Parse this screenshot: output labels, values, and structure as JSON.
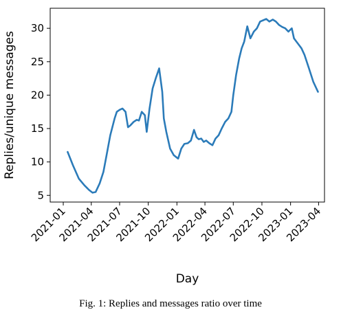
{
  "chart_data": {
    "type": "line",
    "title": "",
    "xlabel": "Day",
    "ylabel": "Replies/unique messages",
    "x_ticks": [
      "2021-01",
      "2021-04",
      "2021-07",
      "2021-10",
      "2022-01",
      "2022-04",
      "2022-07",
      "2022-10",
      "2023-01",
      "2023-04"
    ],
    "y_ticks": [
      5,
      10,
      15,
      20,
      25,
      30
    ],
    "xlim": [
      "2020-11-20",
      "2023-04-20"
    ],
    "ylim": [
      4,
      33
    ],
    "grid": false,
    "legend": "none",
    "color": "#2b7bb9",
    "series": [
      {
        "x": [
          "2021-01-15",
          "2021-02-01",
          "2021-02-20",
          "2021-03-10",
          "2021-03-25",
          "2021-04-05",
          "2021-04-15",
          "2021-04-28",
          "2021-05-10",
          "2021-05-20",
          "2021-06-01",
          "2021-06-15",
          "2021-06-22",
          "2021-07-01",
          "2021-07-10",
          "2021-07-20",
          "2021-07-28",
          "2021-08-05",
          "2021-08-15",
          "2021-08-25",
          "2021-09-01",
          "2021-09-10",
          "2021-09-20",
          "2021-09-26",
          "2021-10-05",
          "2021-10-15",
          "2021-10-25",
          "2021-11-05",
          "2021-11-15",
          "2021-11-20",
          "2021-11-28",
          "2021-12-10",
          "2021-12-22",
          "2022-01-05",
          "2022-01-15",
          "2022-01-25",
          "2022-02-05",
          "2022-02-15",
          "2022-02-25",
          "2022-03-05",
          "2022-03-12",
          "2022-03-20",
          "2022-03-28",
          "2022-04-05",
          "2022-04-15",
          "2022-04-25",
          "2022-05-05",
          "2022-05-15",
          "2022-05-25",
          "2022-06-05",
          "2022-06-15",
          "2022-06-25",
          "2022-07-01",
          "2022-07-10",
          "2022-07-20",
          "2022-07-28",
          "2022-08-05",
          "2022-08-15",
          "2022-08-25",
          "2022-09-05",
          "2022-09-15",
          "2022-09-25",
          "2022-10-05",
          "2022-10-15",
          "2022-10-25",
          "2022-11-05",
          "2022-11-15",
          "2022-11-25",
          "2022-12-05",
          "2022-12-15",
          "2022-12-25",
          "2023-01-05",
          "2023-01-12",
          "2023-01-20",
          "2023-01-28",
          "2023-02-05",
          "2023-02-15",
          "2023-03-01",
          "2023-03-15",
          "2023-03-30"
        ],
        "y": [
          11.5,
          9.5,
          7.5,
          6.5,
          5.8,
          5.4,
          5.5,
          6.8,
          8.5,
          11,
          14,
          16.5,
          17.5,
          17.8,
          18,
          17.5,
          15.2,
          15.5,
          16,
          16.3,
          16.2,
          17.5,
          17,
          14.5,
          18,
          21,
          22.5,
          24,
          20.5,
          16.5,
          14.5,
          12,
          11,
          10.5,
          12,
          12.7,
          12.8,
          13.2,
          14.8,
          13.7,
          13.4,
          13.5,
          13,
          13.2,
          12.8,
          12.5,
          13.5,
          14,
          15,
          16,
          16.5,
          17.5,
          20,
          23,
          25.5,
          27,
          28,
          30.3,
          28.5,
          29.5,
          30,
          31,
          31.2,
          31.4,
          31,
          31.3,
          31,
          30.5,
          30.2,
          30,
          29.5,
          30,
          28.5,
          28,
          27.5,
          27,
          26,
          24,
          22,
          20.5
        ]
      }
    ]
  },
  "caption": "Fig. 1: Replies and messages ratio over time"
}
